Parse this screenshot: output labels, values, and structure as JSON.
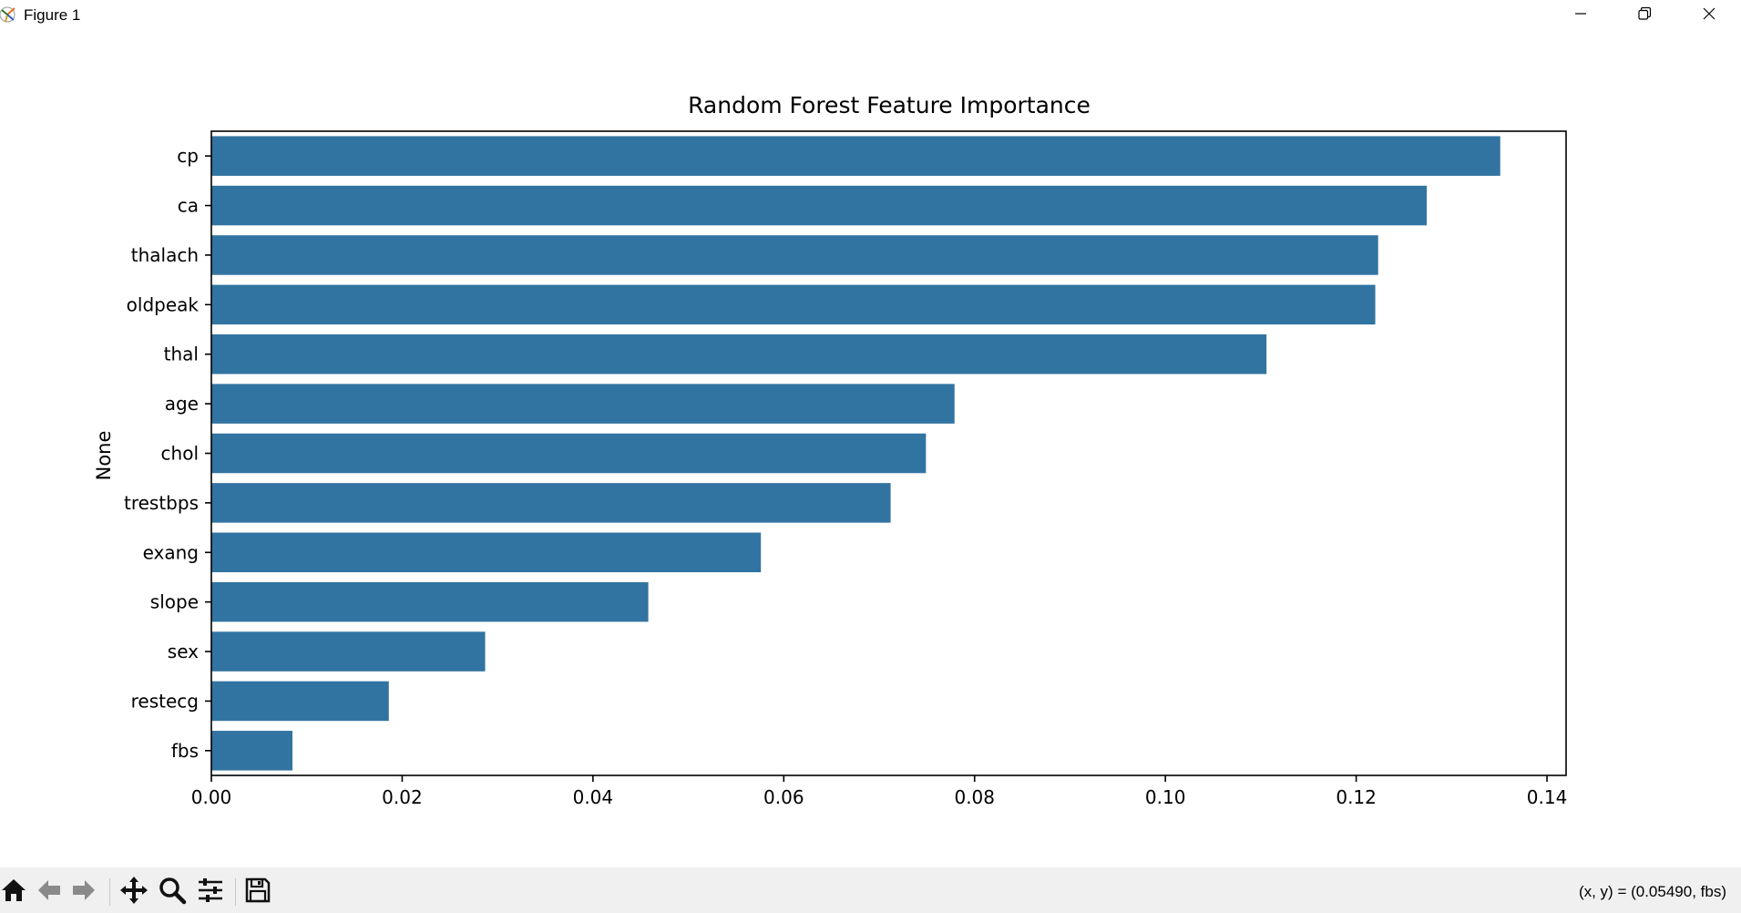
{
  "window": {
    "title": "Figure 1",
    "minimize_icon": "minimize-icon",
    "restore_icon": "restore-icon",
    "close_icon": "close-icon"
  },
  "toolbar": {
    "icons": [
      "home-icon",
      "back-arrow-icon",
      "forward-arrow-icon",
      "pan-icon",
      "zoom-icon",
      "configure-subplots-icon",
      "save-icon"
    ],
    "coords_text": "(x, y) = (0.05490, fbs)"
  },
  "chart_data": {
    "type": "bar",
    "orientation": "horizontal",
    "title": "Random Forest Feature Importance",
    "xlabel": "",
    "ylabel": "None",
    "categories": [
      "cp",
      "ca",
      "thalach",
      "oldpeak",
      "thal",
      "age",
      "chol",
      "trestbps",
      "exang",
      "slope",
      "sex",
      "restecg",
      "fbs"
    ],
    "values": [
      0.1351,
      0.1274,
      0.1223,
      0.122,
      0.1106,
      0.0779,
      0.0749,
      0.0712,
      0.0576,
      0.0458,
      0.0287,
      0.0186,
      0.0085
    ],
    "xlim": [
      0.0,
      0.142
    ],
    "xticks": [
      "0.00",
      "0.02",
      "0.04",
      "0.06",
      "0.08",
      "0.10",
      "0.12",
      "0.14"
    ],
    "bar_color": "#3274a1",
    "grid": false
  }
}
